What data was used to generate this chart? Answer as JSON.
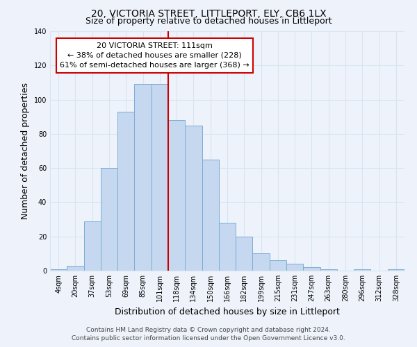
{
  "title": "20, VICTORIA STREET, LITTLEPORT, ELY, CB6 1LX",
  "subtitle": "Size of property relative to detached houses in Littleport",
  "xlabel": "Distribution of detached houses by size in Littleport",
  "ylabel": "Number of detached properties",
  "bar_color": "#c5d8f0",
  "bar_edge_color": "#7aadd4",
  "categories": [
    "4sqm",
    "20sqm",
    "37sqm",
    "53sqm",
    "69sqm",
    "85sqm",
    "101sqm",
    "118sqm",
    "134sqm",
    "150sqm",
    "166sqm",
    "182sqm",
    "199sqm",
    "215sqm",
    "231sqm",
    "247sqm",
    "263sqm",
    "280sqm",
    "296sqm",
    "312sqm",
    "328sqm"
  ],
  "values": [
    1,
    3,
    29,
    60,
    93,
    109,
    109,
    88,
    85,
    65,
    28,
    20,
    10,
    6,
    4,
    2,
    1,
    0,
    1,
    0,
    1
  ],
  "ylim": [
    0,
    140
  ],
  "yticks": [
    0,
    20,
    40,
    60,
    80,
    100,
    120,
    140
  ],
  "property_label": "20 VICTORIA STREET: 111sqm",
  "smaller_pct": "38%",
  "smaller_count": 228,
  "larger_pct": "61%",
  "larger_count": 368,
  "box_color": "#ffffff",
  "box_edge_color": "#cc0000",
  "vline_color": "#cc0000",
  "footer_line1": "Contains HM Land Registry data © Crown copyright and database right 2024.",
  "footer_line2": "Contains public sector information licensed under the Open Government Licence v3.0.",
  "background_color": "#eef3fb",
  "grid_color": "#d8e4f0",
  "title_fontsize": 10,
  "subtitle_fontsize": 9,
  "axis_label_fontsize": 9,
  "tick_fontsize": 7,
  "annotation_fontsize": 8,
  "footer_fontsize": 6.5
}
